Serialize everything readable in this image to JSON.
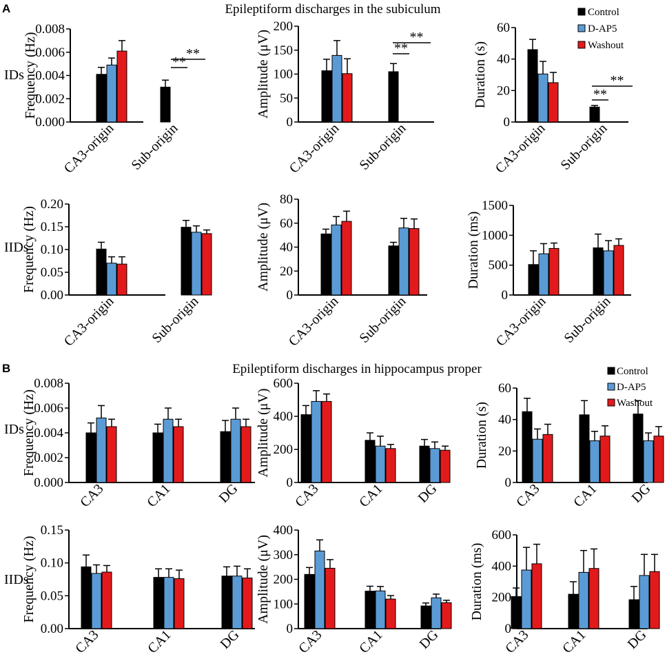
{
  "figure": {
    "panels": [
      {
        "letter": "A",
        "title": "Epileptiform discharges in the subiculum"
      },
      {
        "letter": "B",
        "title": "Epileptiform discharges in hippocampus proper"
      }
    ],
    "row_labels": [
      "IDs",
      "IIDs",
      "IDs",
      "IIDs"
    ],
    "legend": [
      {
        "name": "Control",
        "color": "#000000"
      },
      {
        "name": "D-AP5",
        "color": "#5b9bd5"
      },
      {
        "name": "Washout",
        "color": "#e31a1c"
      }
    ]
  },
  "chart_data": [
    {
      "type": "bar",
      "panel": "A",
      "row": "IDs",
      "ylabel": "Frequency (Hz)",
      "ylim": [
        0,
        0.008
      ],
      "yticks": [
        "0.000",
        "0.002",
        "0.004",
        "0.006",
        "0.008"
      ],
      "categories": [
        "CA3-origin",
        "Sub-origin"
      ],
      "series": [
        {
          "name": "Control",
          "values": [
            0.0041,
            0.003
          ],
          "errors": [
            0.0006,
            0.0006
          ]
        },
        {
          "name": "D-AP5",
          "values": [
            0.0049,
            0
          ],
          "errors": [
            0.0006,
            0
          ]
        },
        {
          "name": "Washout",
          "values": [
            0.0061,
            0
          ],
          "errors": [
            0.0009,
            0
          ]
        }
      ],
      "annotations": [
        "**",
        "**"
      ]
    },
    {
      "type": "bar",
      "panel": "A",
      "row": "IDs",
      "ylabel": "Amplitude  (μV)",
      "ylim": [
        0,
        200
      ],
      "yticks": [
        "0",
        "50",
        "100",
        "150",
        "200"
      ],
      "categories": [
        "CA3-origin",
        "Sub-origin"
      ],
      "series": [
        {
          "name": "Control",
          "values": [
            107,
            105
          ],
          "errors": [
            24,
            17
          ]
        },
        {
          "name": "D-AP5",
          "values": [
            139,
            0
          ],
          "errors": [
            31,
            0
          ]
        },
        {
          "name": "Washout",
          "values": [
            101,
            0
          ],
          "errors": [
            31,
            0
          ]
        }
      ],
      "annotations": [
        "**",
        "**"
      ]
    },
    {
      "type": "bar",
      "panel": "A",
      "row": "IDs",
      "ylabel": "Duration (s)",
      "ylim": [
        0,
        60
      ],
      "yticks": [
        "0",
        "20",
        "40",
        "60"
      ],
      "categories": [
        "CA3-origin",
        "Sub-origin"
      ],
      "series": [
        {
          "name": "Control",
          "values": [
            46,
            9.5
          ],
          "errors": [
            6.5,
            1
          ]
        },
        {
          "name": "D-AP5",
          "values": [
            30.5,
            0
          ],
          "errors": [
            8,
            0
          ]
        },
        {
          "name": "Washout",
          "values": [
            25,
            0
          ],
          "errors": [
            6.5,
            0
          ]
        }
      ],
      "annotations": [
        "**",
        "**"
      ]
    },
    {
      "type": "bar",
      "panel": "A",
      "row": "IIDs",
      "ylabel": "Frequency (Hz)",
      "ylim": [
        0,
        0.2
      ],
      "yticks": [
        "0.00",
        "0.05",
        "0.10",
        "0.15",
        "0.20"
      ],
      "categories": [
        "CA3-origin",
        "Sub-origin"
      ],
      "series": [
        {
          "name": "Control",
          "values": [
            0.101,
            0.149
          ],
          "errors": [
            0.015,
            0.015
          ]
        },
        {
          "name": "D-AP5",
          "values": [
            0.07,
            0.138
          ],
          "errors": [
            0.014,
            0.014
          ]
        },
        {
          "name": "Washout",
          "values": [
            0.068,
            0.135
          ],
          "errors": [
            0.016,
            0.008
          ]
        }
      ]
    },
    {
      "type": "bar",
      "panel": "A",
      "row": "IIDs",
      "ylabel": "Amplitude  (μV)",
      "ylim": [
        0,
        80
      ],
      "yticks": [
        "0",
        "20",
        "40",
        "60",
        "80"
      ],
      "categories": [
        "CA3-origin",
        "Sub-origin"
      ],
      "series": [
        {
          "name": "Control",
          "values": [
            51,
            41
          ],
          "errors": [
            4,
            3
          ]
        },
        {
          "name": "D-AP5",
          "values": [
            58.5,
            56
          ],
          "errors": [
            7,
            8
          ]
        },
        {
          "name": "Washout",
          "values": [
            61.5,
            55.5
          ],
          "errors": [
            8.5,
            8
          ]
        }
      ]
    },
    {
      "type": "bar",
      "panel": "A",
      "row": "IIDs",
      "ylabel": "Duration (ms)",
      "ylim": [
        0,
        1500
      ],
      "yticks": [
        "0",
        "500",
        "1000",
        "1500"
      ],
      "categories": [
        "CA3-origin",
        "Sub-origin"
      ],
      "series": [
        {
          "name": "Control",
          "values": [
            510,
            790
          ],
          "errors": [
            230,
            230
          ]
        },
        {
          "name": "D-AP5",
          "values": [
            690,
            740
          ],
          "errors": [
            170,
            170
          ]
        },
        {
          "name": "Washout",
          "values": [
            780,
            830
          ],
          "errors": [
            90,
            110
          ]
        }
      ]
    },
    {
      "type": "bar",
      "panel": "B",
      "row": "IDs",
      "ylabel": "Frequency (Hz)",
      "ylim": [
        0,
        0.008
      ],
      "yticks": [
        "0.000",
        "0.002",
        "0.004",
        "0.006",
        "0.008"
      ],
      "categories": [
        "CA3",
        "CA1",
        "DG"
      ],
      "series": [
        {
          "name": "Control",
          "values": [
            0.004,
            0.004,
            0.0041
          ],
          "errors": [
            0.0008,
            0.0007,
            0.0009
          ]
        },
        {
          "name": "D-AP5",
          "values": [
            0.0052,
            0.0051,
            0.0051
          ],
          "errors": [
            0.001,
            0.0009,
            0.0009
          ]
        },
        {
          "name": "Washout",
          "values": [
            0.0045,
            0.0045,
            0.0045
          ],
          "errors": [
            0.0006,
            0.0006,
            0.0006
          ]
        }
      ]
    },
    {
      "type": "bar",
      "panel": "B",
      "row": "IDs",
      "ylabel": "Amplitude  (μV)",
      "ylim": [
        0,
        600
      ],
      "yticks": [
        "0",
        "200",
        "400",
        "600"
      ],
      "categories": [
        "CA3",
        "CA1",
        "DG"
      ],
      "series": [
        {
          "name": "Control",
          "values": [
            410,
            255,
            220
          ],
          "errors": [
            55,
            45,
            40
          ]
        },
        {
          "name": "D-AP5",
          "values": [
            490,
            220,
            205
          ],
          "errors": [
            65,
            60,
            40
          ]
        },
        {
          "name": "Washout",
          "values": [
            490,
            205,
            195
          ],
          "errors": [
            45,
            25,
            25
          ]
        }
      ]
    },
    {
      "type": "bar",
      "panel": "B",
      "row": "IDs",
      "ylabel": "Duration (s)",
      "ylim": [
        0,
        60
      ],
      "yticks": [
        "0",
        "20",
        "40",
        "60"
      ],
      "categories": [
        "CA3",
        "CA1",
        "DG"
      ],
      "series": [
        {
          "name": "Control",
          "values": [
            45,
            43,
            43.5
          ],
          "errors": [
            8.5,
            9,
            8.5
          ]
        },
        {
          "name": "D-AP5",
          "values": [
            27.5,
            26.5,
            26.5
          ],
          "errors": [
            6.5,
            6,
            5
          ]
        },
        {
          "name": "Washout",
          "values": [
            30.5,
            29.5,
            29.5
          ],
          "errors": [
            6.5,
            6.5,
            6
          ]
        }
      ]
    },
    {
      "type": "bar",
      "panel": "B",
      "row": "IIDs",
      "ylabel": "Frequency (Hz)",
      "ylim": [
        0,
        0.15
      ],
      "yticks": [
        "0.00",
        "0.05",
        "0.10",
        "0.15"
      ],
      "categories": [
        "CA3",
        "CA1",
        "DG"
      ],
      "series": [
        {
          "name": "Control",
          "values": [
            0.094,
            0.078,
            0.08
          ],
          "errors": [
            0.018,
            0.013,
            0.014
          ]
        },
        {
          "name": "D-AP5",
          "values": [
            0.084,
            0.078,
            0.08
          ],
          "errors": [
            0.013,
            0.013,
            0.015
          ]
        },
        {
          "name": "Washout",
          "values": [
            0.086,
            0.076,
            0.077
          ],
          "errors": [
            0.01,
            0.013,
            0.014
          ]
        }
      ]
    },
    {
      "type": "bar",
      "panel": "B",
      "row": "IIDs",
      "ylabel": "Amplitude  (μV)",
      "ylim": [
        0,
        400
      ],
      "yticks": [
        "0",
        "100",
        "200",
        "300",
        "400"
      ],
      "categories": [
        "CA3",
        "CA1",
        "DG"
      ],
      "series": [
        {
          "name": "Control",
          "values": [
            220,
            152,
            92
          ],
          "errors": [
            28,
            20,
            12
          ]
        },
        {
          "name": "D-AP5",
          "values": [
            315,
            153,
            125
          ],
          "errors": [
            45,
            18,
            15
          ]
        },
        {
          "name": "Washout",
          "values": [
            245,
            120,
            105
          ],
          "errors": [
            35,
            14,
            10
          ]
        }
      ]
    },
    {
      "type": "bar",
      "panel": "B",
      "row": "IIDs",
      "ylabel": "Duration (ms)",
      "ylim": [
        0,
        600
      ],
      "yticks": [
        "0",
        "200",
        "400",
        "600"
      ],
      "categories": [
        "CA3",
        "CA1",
        "DG"
      ],
      "series": [
        {
          "name": "Control",
          "values": [
            205,
            220,
            185
          ],
          "errors": [
            55,
            80,
            85
          ]
        },
        {
          "name": "D-AP5",
          "values": [
            375,
            360,
            340
          ],
          "errors": [
            145,
            140,
            135
          ]
        },
        {
          "name": "Washout",
          "values": [
            415,
            385,
            365
          ],
          "errors": [
            125,
            125,
            110
          ]
        }
      ]
    }
  ]
}
